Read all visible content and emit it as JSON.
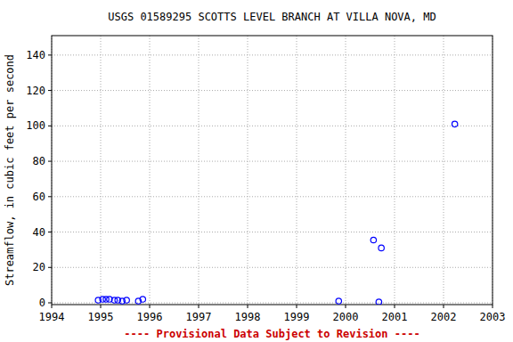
{
  "chart_data": {
    "type": "scatter",
    "title": "USGS 01589295 SCOTTS LEVEL BRANCH AT VILLA NOVA, MD",
    "ylabel": "Streamflow, in cubic feet per second",
    "annotations": [
      "---- Provisional Data Subject to Revision ----"
    ],
    "x": [
      1994.95,
      1995.04,
      1995.11,
      1995.18,
      1995.28,
      1995.35,
      1995.44,
      1995.53,
      1995.77,
      1995.86,
      1999.86,
      2000.57,
      2000.68,
      2000.73,
      2002.23
    ],
    "values": [
      1.5,
      2,
      2,
      2,
      1.5,
      1.5,
      1,
      1.5,
      1,
      2,
      1,
      35.5,
      0.5,
      31,
      101
    ],
    "color": "#0000ff",
    "marker": "open-circle",
    "xlim": [
      1994,
      2003
    ],
    "xticks": [
      1994,
      1995,
      1996,
      1997,
      1998,
      1999,
      2000,
      2001,
      2002,
      2003
    ],
    "ylim": [
      -1,
      151
    ],
    "yticks": [
      0,
      20,
      40,
      60,
      80,
      100,
      120,
      140
    ],
    "grid": true
  }
}
